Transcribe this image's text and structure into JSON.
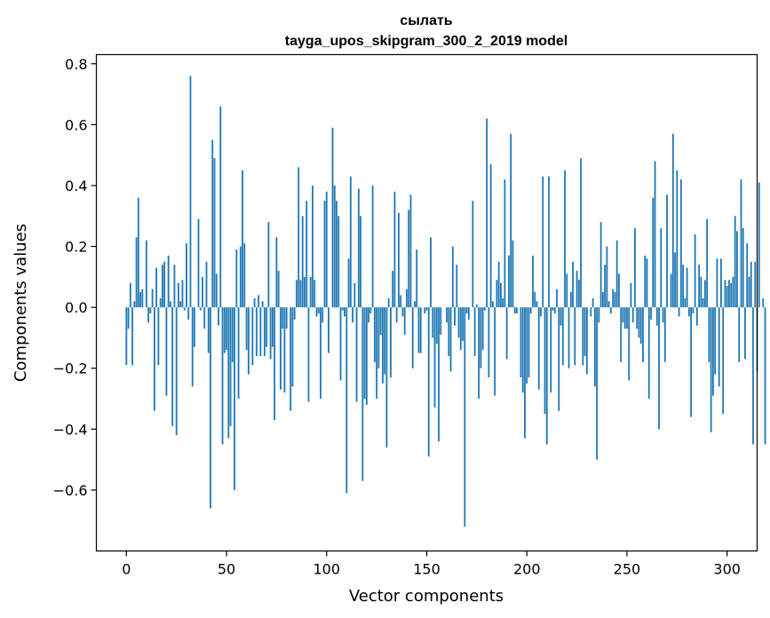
{
  "chart_data": {
    "type": "bar",
    "title": "сылать",
    "subtitle": "tayga_upos_skipgram_300_2_2019 model",
    "xlabel": "Vector components",
    "ylabel": "Components values",
    "xlim": [
      -15,
      315
    ],
    "ylim": [
      -0.8,
      0.83
    ],
    "xticks": [
      0,
      50,
      100,
      150,
      200,
      250,
      300
    ],
    "yticks": [
      -0.6,
      -0.4,
      -0.2,
      0.0,
      0.2,
      0.4,
      0.6,
      0.8
    ],
    "ytick_labels": [
      "−0.6",
      "−0.4",
      "−0.2",
      "0.0",
      "0.2",
      "0.4",
      "0.6",
      "0.8"
    ],
    "bar_color": "#1f77b4",
    "grid": false,
    "values": [
      -0.19,
      -0.07,
      0.08,
      -0.19,
      0.02,
      0.23,
      0.36,
      0.05,
      0.06,
      0.0,
      0.22,
      -0.05,
      -0.02,
      0.06,
      -0.34,
      0.13,
      -0.19,
      0.03,
      0.14,
      0.15,
      -0.29,
      0.17,
      0.02,
      -0.39,
      0.14,
      -0.42,
      0.08,
      0.02,
      0.09,
      -0.01,
      0.21,
      -0.04,
      0.76,
      -0.26,
      -0.13,
      0.0,
      0.29,
      -0.01,
      0.1,
      -0.07,
      0.15,
      -0.15,
      -0.66,
      0.55,
      0.49,
      0.11,
      -0.06,
      0.66,
      -0.45,
      -0.15,
      -0.14,
      -0.43,
      -0.39,
      -0.18,
      -0.6,
      0.19,
      -0.3,
      0.2,
      0.45,
      0.21,
      -0.14,
      -0.22,
      0.0,
      -0.19,
      0.03,
      -0.16,
      0.04,
      -0.16,
      0.02,
      -0.16,
      -0.13,
      0.28,
      -0.17,
      -0.13,
      -0.37,
      0.23,
      0.12,
      -0.27,
      -0.07,
      -0.28,
      -0.07,
      0.0,
      -0.34,
      -0.26,
      -0.04,
      0.09,
      0.46,
      0.09,
      0.3,
      0.1,
      0.35,
      -0.31,
      0.1,
      0.4,
      0.09,
      -0.03,
      -0.02,
      -0.3,
      -0.05,
      0.35,
      0.38,
      -0.15,
      0.0,
      0.59,
      0.4,
      0.35,
      0.3,
      -0.24,
      -0.01,
      -0.03,
      -0.61,
      0.16,
      0.43,
      -0.05,
      0.08,
      -0.31,
      0.39,
      0.3,
      -0.57,
      -0.3,
      -0.32,
      -0.05,
      -0.02,
      0.4,
      -0.18,
      -0.3,
      -0.2,
      -0.09,
      -0.25,
      -0.22,
      -0.46,
      0.03,
      -0.23,
      0.12,
      0.38,
      -0.05,
      0.31,
      0.04,
      -0.03,
      -0.09,
      0.06,
      0.32,
      0.37,
      -0.2,
      0.02,
      0.19,
      -0.15,
      -0.15,
      0.0,
      -0.02,
      -0.01,
      -0.49,
      0.23,
      -0.1,
      -0.33,
      -0.12,
      -0.44,
      -0.09,
      0.0,
      0.0,
      -0.05,
      -0.16,
      -0.21,
      0.2,
      -0.06,
      0.14,
      -0.1,
      -0.14,
      -0.11,
      -0.72,
      -0.02,
      -0.04,
      0.0,
      0.35,
      -0.16,
      0.01,
      -0.3,
      -0.2,
      -0.14,
      -0.01,
      0.62,
      -0.23,
      0.47,
      0.02,
      -0.29,
      0.09,
      0.15,
      0.08,
      0.03,
      0.42,
      -0.17,
      0.17,
      0.57,
      0.22,
      -0.02,
      -0.02,
      0.0,
      -0.23,
      -0.28,
      -0.43,
      -0.25,
      -0.23,
      -0.02,
      0.17,
      0.05,
      0.02,
      -0.27,
      -0.03,
      0.43,
      -0.35,
      -0.45,
      0.43,
      -0.28,
      -0.01,
      -0.02,
      0.06,
      -0.34,
      -0.06,
      -0.19,
      0.45,
      0.11,
      -0.2,
      0.05,
      0.15,
      -0.19,
      0.12,
      0.09,
      0.49,
      -0.19,
      -0.16,
      -0.22,
      0.0,
      -0.03,
      0.03,
      -0.26,
      -0.5,
      -0.05,
      0.28,
      0.05,
      0.14,
      0.2,
      0.02,
      -0.02,
      0.06,
      0.05,
      0.22,
      0.11,
      -0.18,
      -0.05,
      -0.07,
      -0.07,
      -0.24,
      0.08,
      -0.05,
      0.26,
      -0.07,
      -0.1,
      -0.12,
      -0.18,
      0.17,
      0.16,
      -0.3,
      -0.04,
      0.36,
      0.48,
      -0.06,
      -0.4,
      0.26,
      -0.05,
      -0.18,
      0.37,
      0.0,
      0.11,
      0.57,
      0.18,
      0.45,
      -0.03,
      0.42,
      0.14,
      0.03,
      0.13,
      -0.03,
      -0.36,
      -0.02,
      0.24,
      -0.06,
      0.14,
      0.1,
      0.03,
      0.09,
      0.29,
      -0.18,
      -0.41,
      -0.29,
      -0.22,
      0.16,
      -0.26,
      0.16,
      -0.35,
      0.09,
      0.07,
      0.09,
      0.08,
      0.1,
      0.3,
      0.25,
      -0.18,
      0.42,
      0.26,
      -0.17,
      0.21,
      0.1,
      0.15,
      -0.45,
      0.15,
      -0.21,
      0.41,
      0.0,
      0.03,
      -0.45
    ]
  }
}
